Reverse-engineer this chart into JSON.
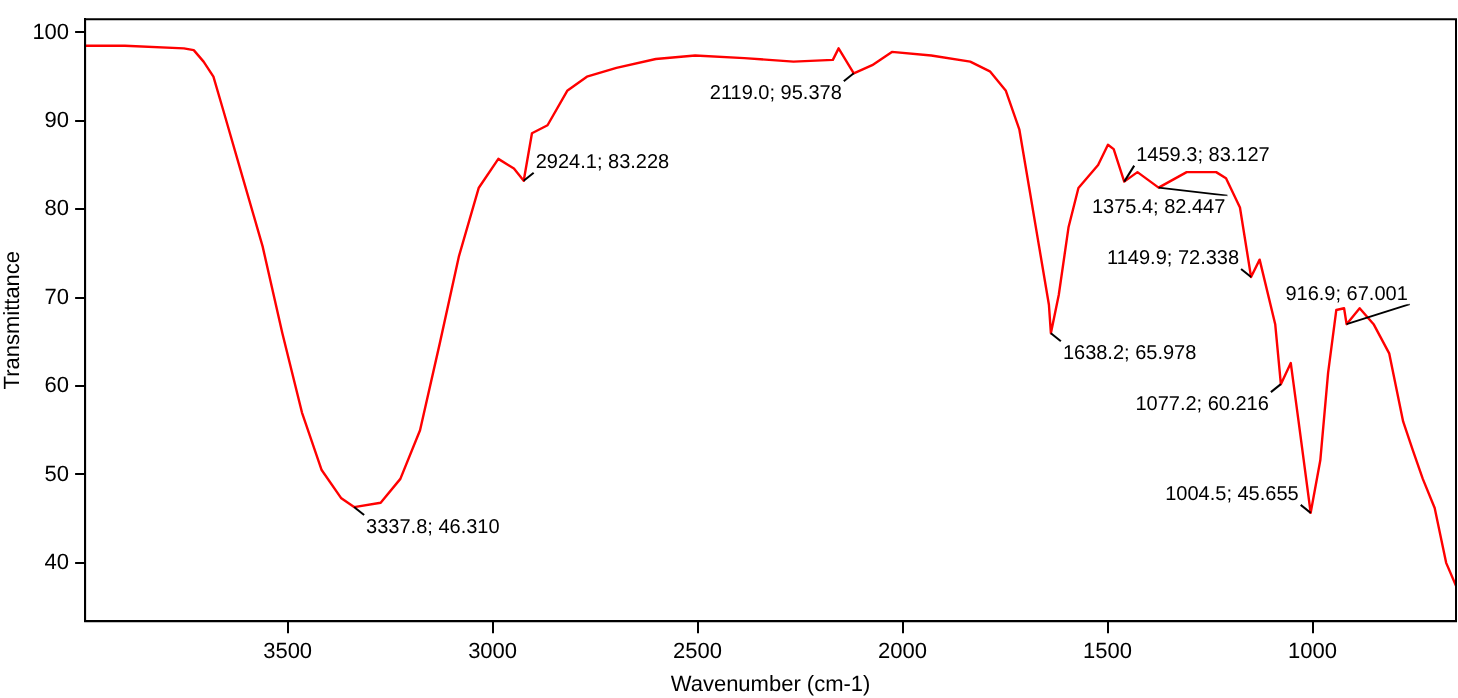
{
  "chart_data": {
    "type": "line",
    "xlabel": "Wavenumber (cm-1)",
    "ylabel": "Transmittance",
    "xlim": [
      3994,
      650
    ],
    "ylim": [
      33.4,
      101.5
    ],
    "xticks": [
      3500,
      3000,
      2500,
      2000,
      1500,
      1000
    ],
    "yticks": [
      40,
      50,
      60,
      70,
      80,
      90,
      100
    ],
    "grid": false,
    "legend": false,
    "marker": "none",
    "line_style": "solid",
    "series": [
      {
        "color": "#ff0000",
        "x": [
          3994,
          3897,
          3753,
          3729,
          3705,
          3681,
          3657,
          3609,
          3561,
          3513,
          3465,
          3417,
          3369,
          3337.8,
          3273,
          3225,
          3177,
          3129,
          3082,
          3034,
          2986,
          2948,
          2924.1,
          2904,
          2866,
          2818,
          2770,
          2698,
          2602,
          2506,
          2386,
          2266,
          2170,
          2156,
          2119.0,
          2074,
          2026,
          1930,
          1835,
          1787,
          1748,
          1715,
          1691,
          1667,
          1643,
          1638.2,
          1619,
          1595,
          1571,
          1523,
          1499,
          1485,
          1459.3,
          1427,
          1375.4,
          1307,
          1235,
          1211,
          1177,
          1149.9,
          1129,
          1091,
          1077.2,
          1053,
          1034,
          1004.5,
          981,
          962,
          942,
          923,
          916.9,
          885,
          851,
          813,
          779,
          755,
          731,
          702,
          674,
          650
        ],
        "values": [
          98.5,
          98.5,
          98.2,
          98.0,
          96.7,
          95,
          91.2,
          83.5,
          75.8,
          66,
          57,
          50.5,
          47.3,
          46.31,
          46.8,
          49.5,
          55,
          64.8,
          74.7,
          82.4,
          85.7,
          84.6,
          83.228,
          88.6,
          89.5,
          93.4,
          95,
          96,
          97,
          97.4,
          97.1,
          96.7,
          96.9,
          98.2,
          95.378,
          96.3,
          97.8,
          97.4,
          96.7,
          95.6,
          93.4,
          89,
          82.4,
          75.8,
          69.2,
          65.978,
          70.3,
          78,
          82.4,
          85,
          87.3,
          86.8,
          83.127,
          84.2,
          82.447,
          84.2,
          84.2,
          83.5,
          80.2,
          72.338,
          74.3,
          67,
          60.216,
          62.6,
          56,
          45.655,
          51.6,
          61.5,
          68.6,
          68.8,
          67.001,
          68.8,
          67,
          63.7,
          56,
          52.7,
          49.5,
          46.2,
          40,
          37.4
        ]
      }
    ],
    "annotations": [
      {
        "text": "3337.8; 46.310",
        "x": 3337.8,
        "y": 46.31
      },
      {
        "text": "2924.1; 83.228",
        "x": 2924.1,
        "y": 83.228
      },
      {
        "text": "2119.0; 95.378",
        "x": 2119.0,
        "y": 95.378
      },
      {
        "text": "1638.2; 65.978",
        "x": 1638.2,
        "y": 65.978
      },
      {
        "text": "1459.3; 83.127",
        "x": 1459.3,
        "y": 83.127
      },
      {
        "text": "1375.4; 82.447",
        "x": 1375.4,
        "y": 82.447
      },
      {
        "text": "1149.9; 72.338",
        "x": 1149.9,
        "y": 72.338
      },
      {
        "text": "916.9; 67.001",
        "x": 916.9,
        "y": 67.001
      },
      {
        "text": "1077.2; 60.216",
        "x": 1077.2,
        "y": 60.216
      },
      {
        "text": "1004.5; 45.655",
        "x": 1004.5,
        "y": 45.655
      }
    ]
  }
}
